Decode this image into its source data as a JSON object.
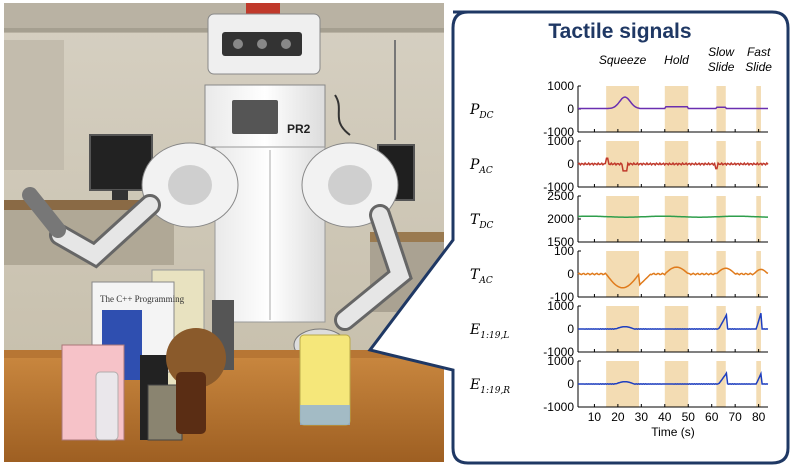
{
  "photo": {
    "robot_label": "PR2",
    "book_label": "The C++ Programming"
  },
  "panel": {
    "title": "Tactile signals",
    "phases": [
      {
        "label": "Squeeze",
        "start": 15,
        "end": 29
      },
      {
        "label": "Hold",
        "start": 40,
        "end": 50
      },
      {
        "label": "Slow\nSlide",
        "start": 62,
        "end": 66
      },
      {
        "label": "Fast\nSlide",
        "start": 79,
        "end": 81
      }
    ],
    "phase_color": "#f3dcb3",
    "xlabel": "Time (s)",
    "xlim": [
      3,
      84
    ],
    "xticks": [
      10,
      20,
      30,
      40,
      50,
      60,
      70,
      80
    ],
    "channels": [
      {
        "sym": "P",
        "sub": "DC",
        "ylim": [
          -1000,
          1000
        ],
        "yticks": [
          1000,
          0,
          -1000
        ],
        "color": "#6a2fb0",
        "kind": "pdc"
      },
      {
        "sym": "P",
        "sub": "AC",
        "ylim": [
          -1000,
          1000
        ],
        "yticks": [
          1000,
          0,
          -1000
        ],
        "color": "#c0392b",
        "kind": "pac"
      },
      {
        "sym": "T",
        "sub": "DC",
        "ylim": [
          1500,
          2500
        ],
        "yticks": [
          2500,
          2000,
          1500
        ],
        "color": "#2e9e4b",
        "kind": "tdc"
      },
      {
        "sym": "T",
        "sub": "AC",
        "ylim": [
          -100,
          100
        ],
        "yticks": [
          100,
          0,
          -100
        ],
        "color": "#e07b1c",
        "kind": "tac"
      },
      {
        "sym": "E",
        "sub": "1:19,L",
        "ylim": [
          -1000,
          1000
        ],
        "yticks": [
          1000,
          0,
          -1000
        ],
        "color": "#1f3fbf",
        "kind": "el"
      },
      {
        "sym": "E",
        "sub": "1:19,R",
        "ylim": [
          -1000,
          1000
        ],
        "yticks": [
          1000,
          0,
          -1000
        ],
        "color": "#1f3fbf",
        "kind": "er"
      }
    ]
  }
}
